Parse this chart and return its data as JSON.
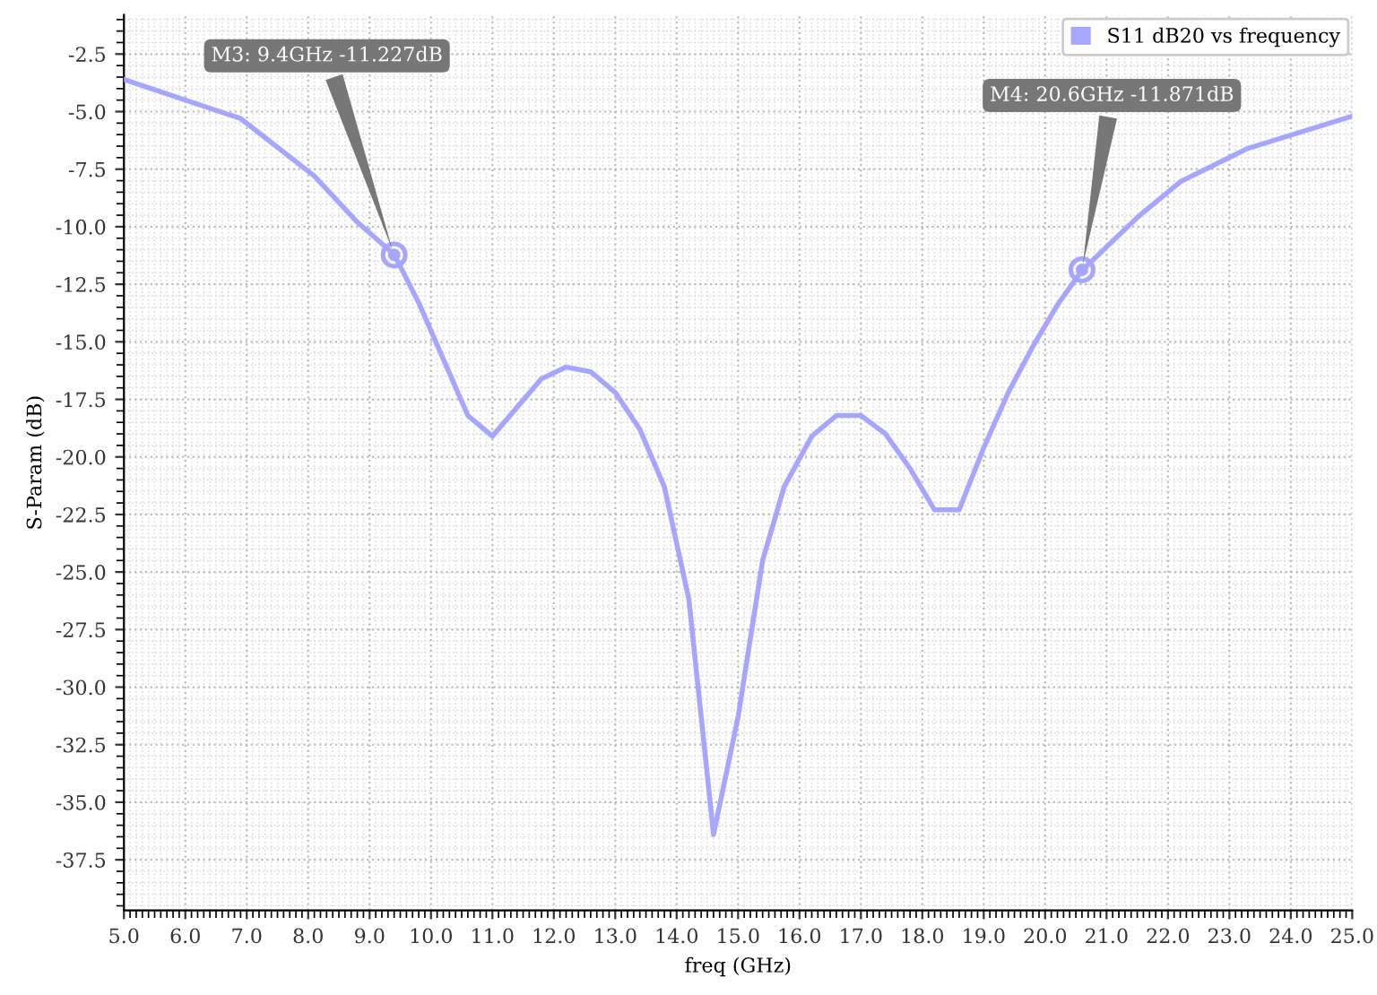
{
  "chart_data": {
    "type": "line",
    "xlabel": "freq (GHz)",
    "ylabel": "S-Param (dB)",
    "xlim": [
      5.0,
      25.0
    ],
    "ylim": [
      -39.7,
      -0.8
    ],
    "xticks": [
      {
        "value": 5,
        "label": "5.0"
      },
      {
        "value": 6,
        "label": "6.0"
      },
      {
        "value": 7,
        "label": "7.0"
      },
      {
        "value": 8,
        "label": "8.0"
      },
      {
        "value": 9,
        "label": "9.0"
      },
      {
        "value": 10,
        "label": "10.0"
      },
      {
        "value": 11,
        "label": "11.0"
      },
      {
        "value": 12,
        "label": "12.0"
      },
      {
        "value": 13,
        "label": "13.0"
      },
      {
        "value": 14,
        "label": "14.0"
      },
      {
        "value": 15,
        "label": "15.0"
      },
      {
        "value": 16,
        "label": "16.0"
      },
      {
        "value": 17,
        "label": "17.0"
      },
      {
        "value": 18,
        "label": "18.0"
      },
      {
        "value": 19,
        "label": "19.0"
      },
      {
        "value": 20,
        "label": "20.0"
      },
      {
        "value": 21,
        "label": "21.0"
      },
      {
        "value": 22,
        "label": "22.0"
      },
      {
        "value": 23,
        "label": "23.0"
      },
      {
        "value": 24,
        "label": "24.0"
      },
      {
        "value": 25,
        "label": "25.0"
      }
    ],
    "yticks": [
      -2.5,
      {
        "value": -5,
        "label": "-5.0"
      },
      -7.5,
      {
        "value": -10,
        "label": "-10.0"
      },
      -12.5,
      {
        "value": -15,
        "label": "-15.0"
      },
      -17.5,
      {
        "value": -20,
        "label": "-20.0"
      },
      -22.5,
      {
        "value": -25,
        "label": "-25.0"
      },
      -27.5,
      {
        "value": -30,
        "label": "-30.0"
      },
      -32.5,
      {
        "value": -35,
        "label": "-35.0"
      },
      -37.5
    ],
    "grid": true,
    "legend": "top right",
    "marker": "none",
    "line_style": "solid",
    "series": [
      {
        "name": "S11 dB20 vs frequency",
        "color": "#a6a6ff",
        "x": [
          5.0,
          6.9,
          8.1,
          8.8,
          9.4,
          9.8,
          10.6,
          11.0,
          11.8,
          12.2,
          12.6,
          13.0,
          13.4,
          13.8,
          14.2,
          14.6,
          15.0,
          15.4,
          15.75,
          16.2,
          16.6,
          17.0,
          17.4,
          17.8,
          18.2,
          18.6,
          19.0,
          19.4,
          19.8,
          20.2,
          20.6,
          21.5,
          22.2,
          23.3,
          25.0
        ],
        "values": [
          -3.6,
          -5.3,
          -7.8,
          -9.8,
          -11.2,
          -13.3,
          -18.2,
          -19.1,
          -16.6,
          -16.1,
          -16.3,
          -17.2,
          -18.8,
          -21.3,
          -26.2,
          -36.4,
          -31.3,
          -24.5,
          -21.3,
          -19.1,
          -18.2,
          -18.2,
          -19.0,
          -20.5,
          -22.3,
          -22.3,
          -19.6,
          -17.2,
          -15.2,
          -13.4,
          -11.9,
          -9.6,
          -8.05,
          -6.6,
          -5.2
        ]
      }
    ],
    "annotations": [
      {
        "text": "M3: 9.4GHz -11.227dB",
        "x": 9.4,
        "y": -11.227
      },
      {
        "text": "M4: 20.6GHz -11.871dB",
        "x": 20.6,
        "y": -11.871
      }
    ]
  }
}
